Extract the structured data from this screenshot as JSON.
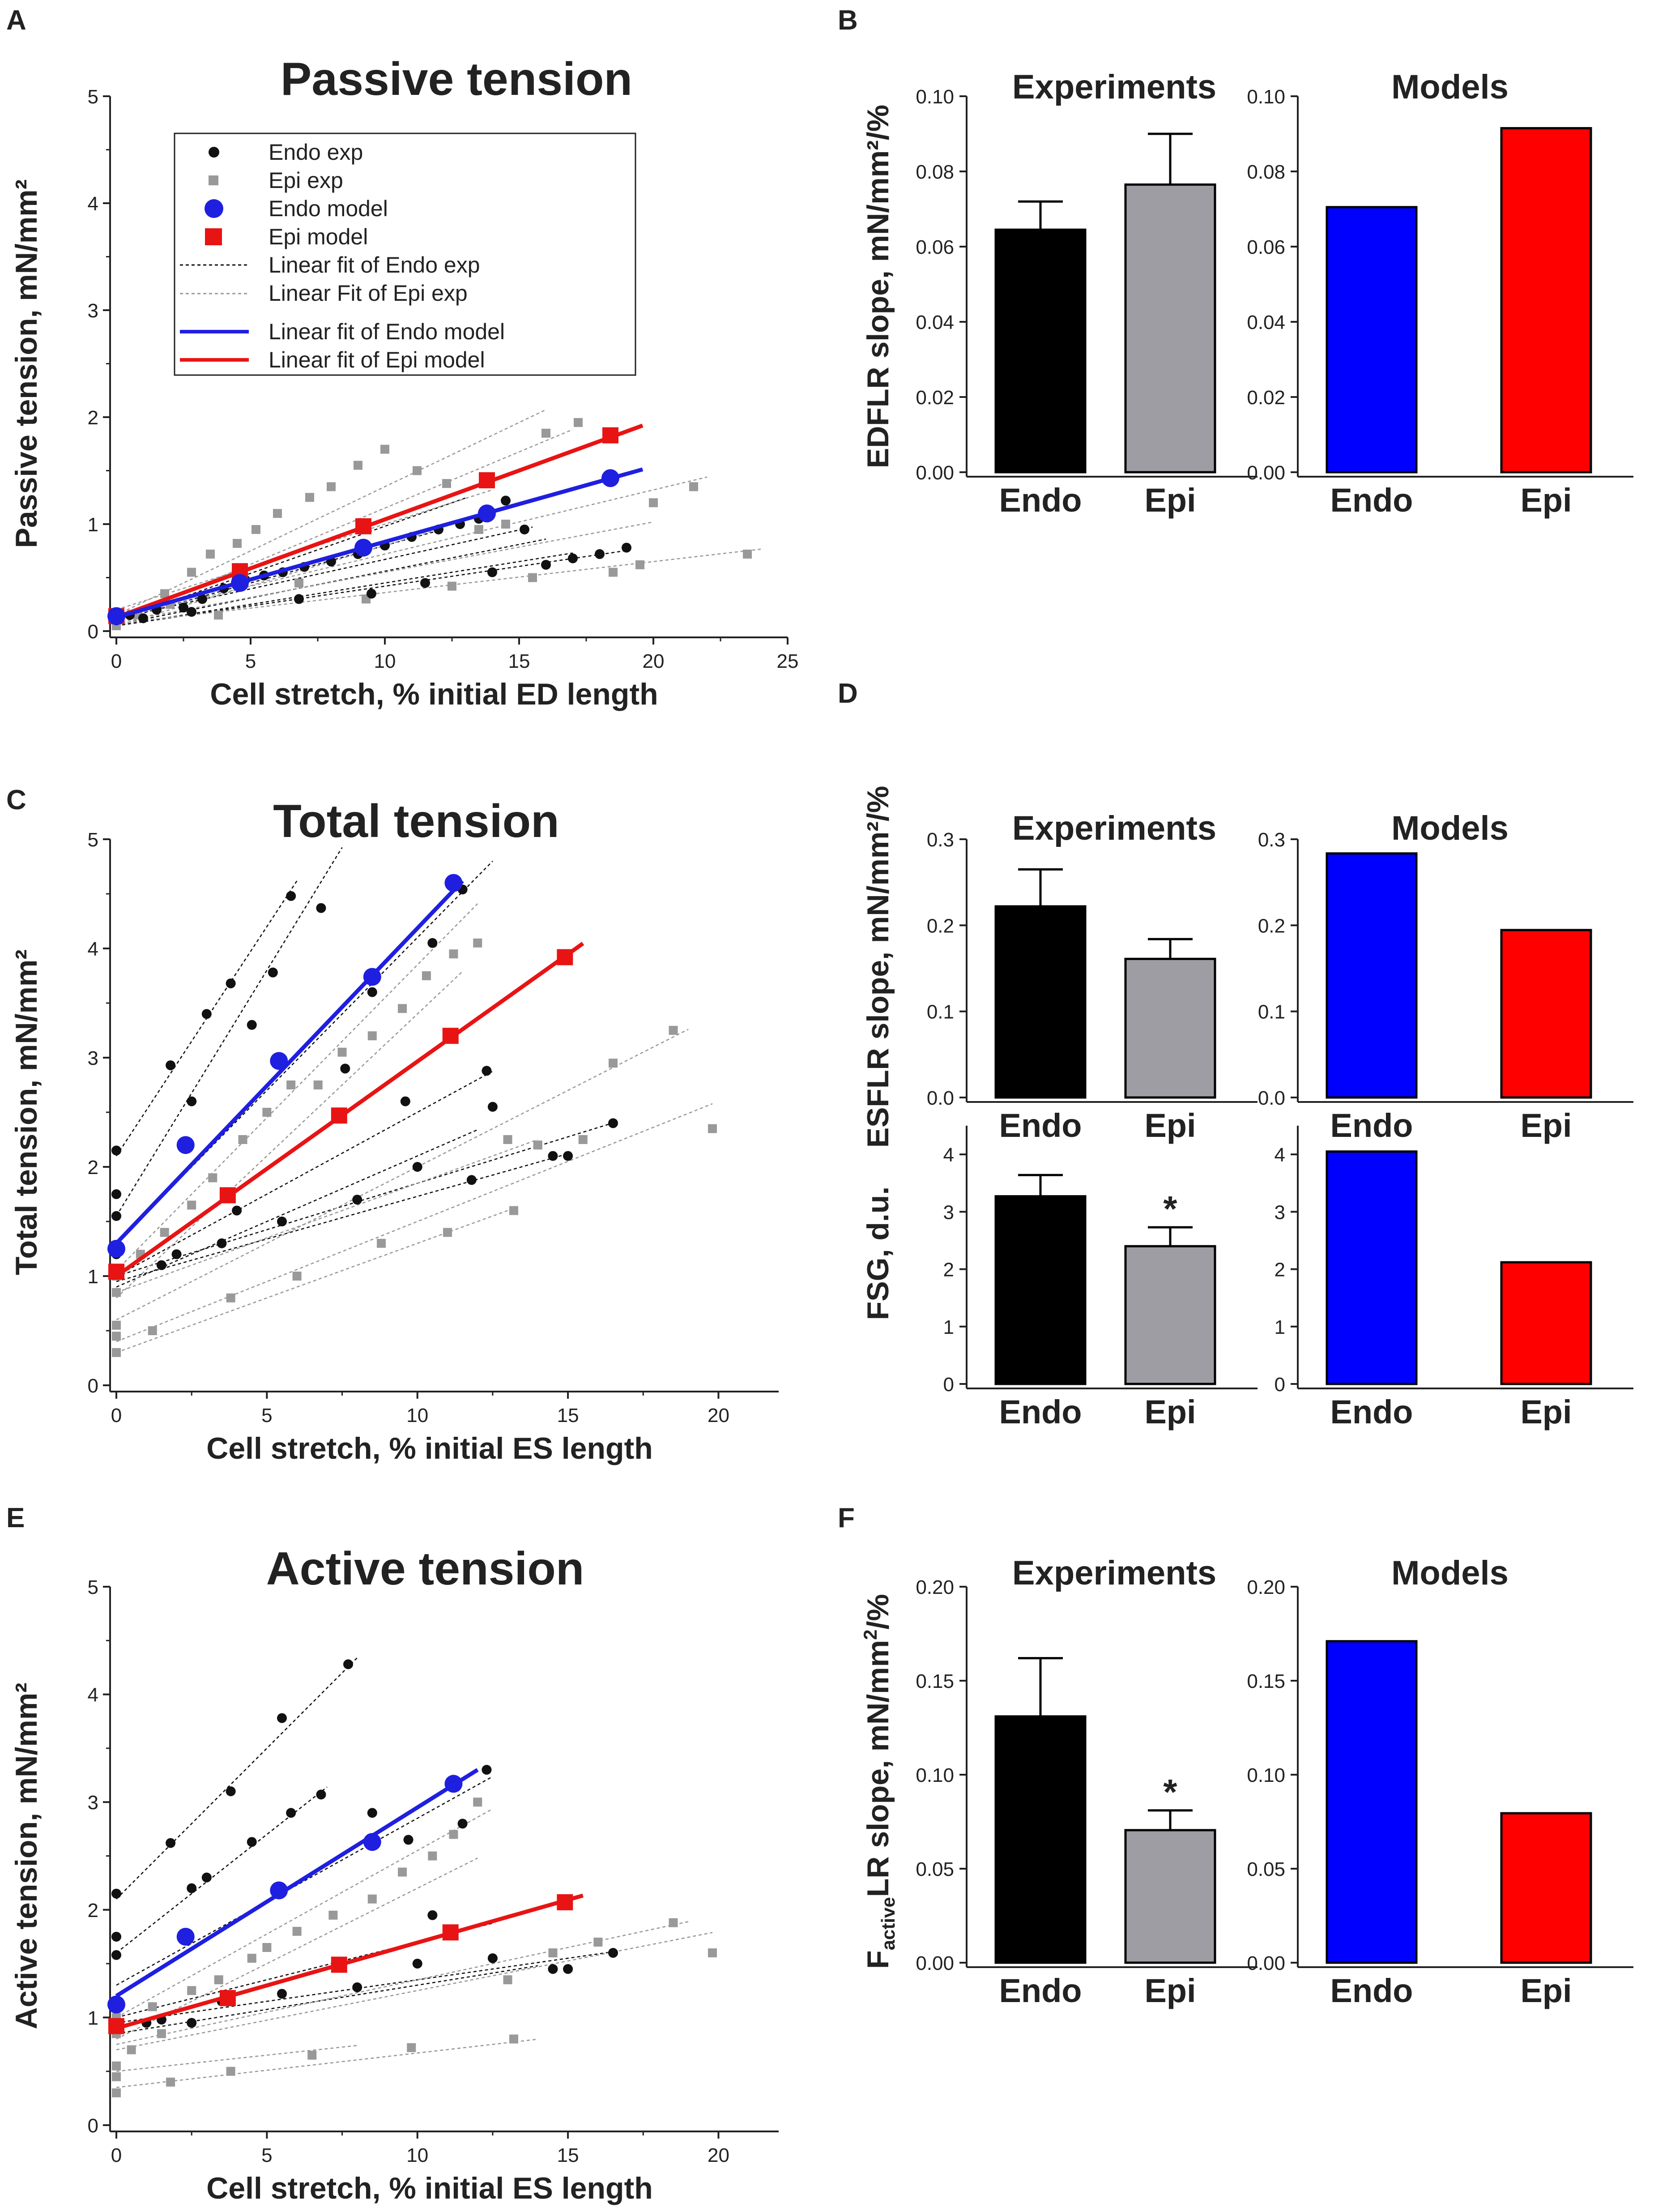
{
  "figure": {
    "panels": {
      "A": "A",
      "B": "B",
      "C": "C",
      "D": "D",
      "E": "E",
      "F": "F"
    }
  },
  "legend": {
    "endo_exp": "Endo exp",
    "epi_exp": "Epi exp",
    "endo_model": "Endo model",
    "epi_model": "Epi model",
    "fit_endo_exp": "Linear fit of Endo exp",
    "fit_epi_exp": "Linear Fit of Epi exp",
    "fit_endo_model": "Linear fit of Endo model",
    "fit_epi_model": "Linear fit of Epi model"
  },
  "colors": {
    "endo_exp": "#111111",
    "epi_exp": "#999999",
    "endo_model": "#1f1fe0",
    "epi_model": "#e81414",
    "bar_exp_endo": "#000000",
    "bar_exp_epi": "#9d9da3",
    "bar_model_endo": "#0000ff",
    "bar_model_epi": "#ff0000"
  },
  "chart_data": [
    {
      "id": "A",
      "type": "scatter",
      "title": "Passive tension",
      "xlabel": "Cell stretch, % initial ED length",
      "ylabel": "Passive tension,  mN/mm²",
      "xlim": [
        0,
        25
      ],
      "ylim": [
        0,
        5
      ],
      "xticks": [
        0,
        5,
        10,
        15,
        20,
        25
      ],
      "yticks": [
        0,
        1,
        2,
        3,
        4,
        5
      ],
      "exp_lines": {
        "endo": [
          {
            "x0": 0,
            "x1": 13,
            "b": 0.1,
            "m": 0.088
          },
          {
            "x0": 0,
            "x1": 15.5,
            "b": 0.12,
            "m": 0.055
          },
          {
            "x0": 0,
            "x1": 17,
            "b": 0.05,
            "m": 0.04
          },
          {
            "x0": 0,
            "x1": 12,
            "b": 0.1,
            "m": 0.07
          },
          {
            "x0": 0,
            "x1": 19,
            "b": 0.05,
            "m": 0.037
          },
          {
            "x0": 0,
            "x1": 16,
            "b": 0.06,
            "m": 0.05
          }
        ],
        "epi": [
          {
            "x0": 0,
            "x1": 16,
            "b": 0.15,
            "m": 0.12
          },
          {
            "x0": 0,
            "x1": 17,
            "b": 0.1,
            "m": 0.105
          },
          {
            "x0": 0,
            "x1": 22,
            "b": 0.12,
            "m": 0.06
          },
          {
            "x0": 0,
            "x1": 20,
            "b": 0.08,
            "m": 0.047
          },
          {
            "x0": 0,
            "x1": 24,
            "b": 0.07,
            "m": 0.029
          },
          {
            "x0": 0,
            "x1": 12,
            "b": 0.05,
            "m": 0.075
          },
          {
            "x0": 0,
            "x1": 14,
            "b": 0.2,
            "m": 0.08
          }
        ]
      },
      "endo_exp_points": {
        "x": [
          0,
          0.5,
          1.5,
          2.5,
          3.2,
          4,
          4.8,
          5.5,
          6.2,
          7,
          8,
          9,
          10,
          11,
          12,
          12.8,
          13.5,
          14.5,
          15.2,
          16,
          17,
          18,
          19,
          1,
          2.8,
          6.8,
          9.5,
          11.5,
          14
        ],
        "y": [
          0.1,
          0.15,
          0.2,
          0.22,
          0.3,
          0.4,
          0.48,
          0.52,
          0.55,
          0.6,
          0.65,
          0.72,
          0.8,
          0.88,
          0.95,
          1.0,
          1.05,
          1.22,
          0.95,
          0.62,
          0.68,
          0.72,
          0.78,
          0.12,
          0.18,
          0.3,
          0.35,
          0.45,
          0.55
        ]
      },
      "epi_exp_points": {
        "x": [
          0,
          0.8,
          1.8,
          2.8,
          3.5,
          4.5,
          5.2,
          6,
          7.2,
          8,
          9,
          10,
          11.2,
          12.3,
          13.5,
          14.5,
          16,
          17.2,
          18.5,
          20,
          21.5,
          23.5,
          2,
          3.8,
          6.8,
          9.3,
          12.5,
          15.5,
          19.5
        ],
        "y": [
          0.05,
          0.15,
          0.35,
          0.55,
          0.72,
          0.82,
          0.95,
          1.1,
          1.25,
          1.35,
          1.55,
          1.7,
          1.5,
          1.38,
          0.95,
          1.0,
          1.85,
          1.95,
          0.55,
          1.2,
          1.35,
          0.72,
          0.25,
          0.15,
          0.45,
          0.3,
          0.42,
          0.5,
          0.62
        ]
      },
      "endo_model": {
        "x": [
          0,
          4.6,
          9.2,
          13.8,
          18.4
        ],
        "y": [
          0.14,
          0.45,
          0.78,
          1.1,
          1.43
        ],
        "fit": {
          "x0": 0,
          "x1": 19.6,
          "b": 0.13,
          "m": 0.0705
        }
      },
      "epi_model": {
        "x": [
          0,
          4.6,
          9.2,
          13.8,
          18.4
        ],
        "y": [
          0.14,
          0.56,
          0.98,
          1.41,
          1.83
        ],
        "fit": {
          "x0": 0,
          "x1": 19.6,
          "b": 0.13,
          "m": 0.0914
        }
      }
    },
    {
      "id": "C",
      "type": "scatter",
      "title": "Total tension",
      "xlabel": "Cell stretch, % initial ES length",
      "ylabel": "Total tension,  mN/mm²",
      "xlim": [
        0,
        22
      ],
      "ylim": [
        0,
        5
      ],
      "xticks": [
        0,
        5,
        10,
        15,
        20
      ],
      "yticks": [
        0,
        1,
        2,
        3,
        4,
        5
      ],
      "exp_lines": {
        "endo": [
          {
            "x0": 0,
            "x1": 6,
            "b": 2.1,
            "m": 0.42
          },
          {
            "x0": 0,
            "x1": 7.5,
            "b": 1.55,
            "m": 0.45
          },
          {
            "x0": 0,
            "x1": 12.5,
            "b": 1.3,
            "m": 0.28
          },
          {
            "x0": 0,
            "x1": 12.5,
            "b": 1.0,
            "m": 0.15
          },
          {
            "x0": 0,
            "x1": 16.5,
            "b": 1.0,
            "m": 0.085
          },
          {
            "x0": 0,
            "x1": 12,
            "b": 0.9,
            "m": 0.12
          },
          {
            "x0": 0,
            "x1": 15,
            "b": 0.95,
            "m": 0.078
          }
        ],
        "epi": [
          {
            "x0": 0,
            "x1": 12,
            "b": 1.05,
            "m": 0.28
          },
          {
            "x0": 0,
            "x1": 11.5,
            "b": 0.8,
            "m": 0.26
          },
          {
            "x0": 0,
            "x1": 19,
            "b": 0.6,
            "m": 0.14
          },
          {
            "x0": 0,
            "x1": 19.8,
            "b": 0.4,
            "m": 0.11
          },
          {
            "x0": 0,
            "x1": 13,
            "b": 0.3,
            "m": 0.1
          },
          {
            "x0": 0,
            "x1": 14,
            "b": 0.85,
            "m": 0.1
          }
        ]
      },
      "endo_exp_points": {
        "x": [
          0,
          0,
          0,
          0,
          1.8,
          2.5,
          3,
          3.8,
          4.5,
          5.2,
          5.8,
          6.8,
          7.6,
          8.5,
          9.6,
          10.5,
          11.5,
          12.3,
          12.5,
          14.5,
          15,
          16.5,
          1.5,
          3.5,
          5.5,
          8,
          10,
          11.8,
          2,
          4
        ],
        "y": [
          2.15,
          1.75,
          1.55,
          1.2,
          2.93,
          2.6,
          3.4,
          3.68,
          3.3,
          3.78,
          4.48,
          4.37,
          2.9,
          3.6,
          2.6,
          4.05,
          4.54,
          2.88,
          2.55,
          2.1,
          2.1,
          2.4,
          1.1,
          1.3,
          1.5,
          1.7,
          2.0,
          1.88,
          1.2,
          1.6
        ],
        "size_scale": 1
      },
      "epi_exp_points": {
        "x": [
          0,
          0,
          0,
          0,
          0,
          0.8,
          1.6,
          2.5,
          3.2,
          4.2,
          5,
          5.8,
          6.7,
          7.5,
          8.5,
          9.5,
          10.3,
          11.2,
          12,
          13,
          14,
          15.5,
          16.5,
          18.5,
          19.8,
          1.2,
          3.8,
          6,
          8.8,
          11,
          13.2
        ],
        "y": [
          0.3,
          0.45,
          0.55,
          0.85,
          1.0,
          1.2,
          1.4,
          1.65,
          1.9,
          2.25,
          2.5,
          2.75,
          2.75,
          3.05,
          3.2,
          3.45,
          3.75,
          3.95,
          4.05,
          2.25,
          2.2,
          2.25,
          2.95,
          3.25,
          2.35,
          0.5,
          0.8,
          1.0,
          1.3,
          1.4,
          1.6
        ]
      },
      "endo_model": {
        "x": [
          0,
          2.3,
          5.4,
          8.5,
          11.2
        ],
        "y": [
          1.25,
          2.2,
          2.97,
          3.74,
          4.6
        ],
        "fit": {
          "x0": 0,
          "x1": 11.5,
          "b": 1.3,
          "m": 0.2885
        }
      },
      "epi_model": {
        "x": [
          0,
          3.7,
          7.4,
          11.1,
          14.9
        ],
        "y": [
          1.04,
          1.74,
          2.47,
          3.2,
          3.92
        ],
        "fit": {
          "x0": 0,
          "x1": 15.5,
          "b": 1.0,
          "m": 0.1965
        }
      }
    },
    {
      "id": "E",
      "type": "scatter",
      "title": "Active tension",
      "xlabel": "Cell stretch, % initial ES length",
      "ylabel": "Active tension,  mN/mm²",
      "xlim": [
        0,
        22
      ],
      "ylim": [
        0,
        5
      ],
      "xticks": [
        0,
        5,
        10,
        15,
        20
      ],
      "yticks": [
        0,
        1,
        2,
        3,
        4,
        5
      ],
      "exp_lines": {
        "endo": [
          {
            "x0": 0,
            "x1": 8,
            "b": 2.1,
            "m": 0.28
          },
          {
            "x0": 0,
            "x1": 7,
            "b": 1.6,
            "m": 0.22
          },
          {
            "x0": 0,
            "x1": 12.5,
            "b": 1.3,
            "m": 0.155
          },
          {
            "x0": 0,
            "x1": 12.5,
            "b": 1.0,
            "m": 0.07
          },
          {
            "x0": 0,
            "x1": 16.5,
            "b": 0.95,
            "m": 0.04
          },
          {
            "x0": 0,
            "x1": 14,
            "b": 0.85,
            "m": 0.045
          }
        ],
        "epi": [
          {
            "x0": 0,
            "x1": 12.5,
            "b": 1.0,
            "m": 0.155
          },
          {
            "x0": 0,
            "x1": 12,
            "b": 0.8,
            "m": 0.14
          },
          {
            "x0": 0,
            "x1": 19,
            "b": 0.75,
            "m": 0.06
          },
          {
            "x0": 0,
            "x1": 19.8,
            "b": 0.7,
            "m": 0.055
          },
          {
            "x0": 0,
            "x1": 14,
            "b": 0.35,
            "m": 0.032
          },
          {
            "x0": 0,
            "x1": 8,
            "b": 0.5,
            "m": 0.03
          }
        ]
      },
      "endo_exp_points": {
        "x": [
          0,
          0,
          0,
          1.8,
          2.5,
          3,
          3.8,
          4.5,
          5.5,
          5.8,
          6.8,
          7.7,
          8.5,
          9.7,
          10.5,
          11.5,
          12.3,
          12.5,
          14.5,
          15,
          16.5,
          1.5,
          3.5,
          5.5,
          8,
          10,
          1,
          2.5
        ],
        "y": [
          2.15,
          1.75,
          1.58,
          2.62,
          2.2,
          2.3,
          3.1,
          2.63,
          3.78,
          2.9,
          3.07,
          4.28,
          2.9,
          2.65,
          1.95,
          2.8,
          3.3,
          1.55,
          1.45,
          1.45,
          1.6,
          0.98,
          1.15,
          1.22,
          1.28,
          1.5,
          0.95,
          0.95
        ]
      },
      "epi_exp_points": {
        "x": [
          0,
          0,
          0,
          0,
          0,
          1.2,
          2.5,
          3.4,
          4.5,
          5,
          6,
          7.2,
          8.5,
          9.5,
          10.5,
          11.2,
          12,
          13,
          14.5,
          16,
          18.5,
          19.8,
          1.8,
          3.8,
          6.5,
          9.8,
          13.2,
          0.5,
          1.5
        ],
        "y": [
          0.3,
          0.45,
          0.55,
          0.85,
          1.0,
          1.1,
          1.25,
          1.35,
          1.55,
          1.65,
          1.8,
          1.95,
          2.1,
          2.35,
          2.5,
          2.7,
          3.0,
          1.35,
          1.6,
          1.7,
          1.88,
          1.6,
          0.4,
          0.5,
          0.65,
          0.72,
          0.8,
          0.7,
          0.85
        ]
      },
      "endo_model": {
        "x": [
          0,
          2.3,
          5.4,
          8.5,
          11.2
        ],
        "y": [
          1.12,
          1.75,
          2.18,
          2.63,
          3.17
        ],
        "fit": {
          "x0": 0,
          "x1": 12,
          "b": 1.2,
          "m": 0.175
        }
      },
      "epi_model": {
        "x": [
          0,
          3.7,
          7.4,
          11.1,
          14.9
        ],
        "y": [
          0.92,
          1.18,
          1.49,
          1.79,
          2.07
        ],
        "fit": {
          "x0": 0,
          "x1": 15.5,
          "b": 0.9,
          "m": 0.0795
        }
      }
    },
    {
      "id": "B-exp",
      "type": "bar",
      "title": "Experiments",
      "ylabel": "EDFLR slope, mN/mm²/%",
      "categories": [
        "Endo",
        "Epi"
      ],
      "values": [
        0.0645,
        0.0765
      ],
      "errors": [
        0.0075,
        0.0135
      ],
      "ylim": [
        0,
        0.1
      ],
      "yticks": [
        0.0,
        0.02,
        0.04,
        0.06,
        0.08,
        0.1
      ],
      "tick_format": 2,
      "colors": [
        "#000000",
        "#9d9da3"
      ],
      "stars": [
        "",
        ""
      ]
    },
    {
      "id": "B-mod",
      "type": "bar",
      "title": "Models",
      "categories": [
        "Endo",
        "Epi"
      ],
      "values": [
        0.0705,
        0.0915
      ],
      "ylim": [
        0,
        0.1
      ],
      "yticks": [
        0.0,
        0.02,
        0.04,
        0.06,
        0.08,
        0.1
      ],
      "tick_format": 2,
      "colors": [
        "#0000ff",
        "#ff0000"
      ]
    },
    {
      "id": "D1-exp",
      "type": "bar",
      "title": "Experiments",
      "ylabel": "ESFLR slope, mN/mm²/%",
      "categories": [
        "Endo",
        "Epi"
      ],
      "values": [
        0.222,
        0.161
      ],
      "errors": [
        0.043,
        0.023
      ],
      "ylim": [
        0,
        0.3
      ],
      "yticks": [
        0.0,
        0.1,
        0.2,
        0.3
      ],
      "tick_format": 1,
      "colors": [
        "#000000",
        "#9d9da3"
      ],
      "stars": [
        "",
        ""
      ]
    },
    {
      "id": "D1-mod",
      "type": "bar",
      "title": "Models",
      "categories": [
        "Endo",
        "Epi"
      ],
      "values": [
        0.2835,
        0.1945
      ],
      "ylim": [
        0,
        0.3
      ],
      "yticks": [
        0.0,
        0.1,
        0.2,
        0.3
      ],
      "tick_format": 1,
      "colors": [
        "#0000ff",
        "#ff0000"
      ]
    },
    {
      "id": "D2-exp",
      "type": "bar",
      "ylabel": "FSG, d.u.",
      "categories": [
        "Endo",
        "Epi"
      ],
      "values": [
        3.27,
        2.4
      ],
      "errors": [
        0.37,
        0.33
      ],
      "ylim": [
        0,
        4.5
      ],
      "yticks": [
        0,
        1,
        2,
        3,
        4
      ],
      "tick_format": 0,
      "colors": [
        "#000000",
        "#9d9da3"
      ],
      "stars": [
        "",
        "*"
      ]
    },
    {
      "id": "D2-mod",
      "type": "bar",
      "categories": [
        "Endo",
        "Epi"
      ],
      "values": [
        4.05,
        2.12
      ],
      "ylim": [
        0,
        4.5
      ],
      "yticks": [
        0,
        1,
        2,
        3,
        4
      ],
      "tick_format": 0,
      "colors": [
        "#0000ff",
        "#ff0000"
      ]
    },
    {
      "id": "F-exp",
      "type": "bar",
      "title": "Experiments",
      "ylabel_parts": [
        "F",
        "active",
        "LR slope, mN/mm",
        "2",
        "/%"
      ],
      "categories": [
        "Endo",
        "Epi"
      ],
      "values": [
        0.131,
        0.0705
      ],
      "errors": [
        0.031,
        0.0105
      ],
      "ylim": [
        0,
        0.2
      ],
      "yticks": [
        0.0,
        0.05,
        0.1,
        0.15,
        0.2
      ],
      "tick_format": 2,
      "colors": [
        "#000000",
        "#9d9da3"
      ],
      "stars": [
        "",
        "*"
      ]
    },
    {
      "id": "F-mod",
      "type": "bar",
      "title": "Models",
      "categories": [
        "Endo",
        "Epi"
      ],
      "values": [
        0.171,
        0.0795
      ],
      "ylim": [
        0,
        0.2
      ],
      "yticks": [
        0.0,
        0.05,
        0.1,
        0.15,
        0.2
      ],
      "tick_format": 2,
      "colors": [
        "#0000ff",
        "#ff0000"
      ]
    }
  ]
}
